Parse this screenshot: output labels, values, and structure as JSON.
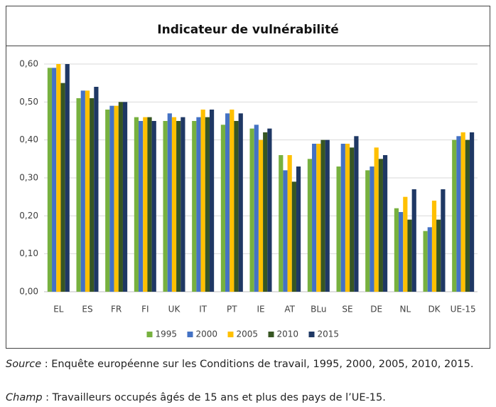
{
  "chart_data": {
    "type": "bar",
    "title": "Indicateur de vulnérabilité",
    "categories": [
      "EL",
      "ES",
      "FR",
      "FI",
      "UK",
      "IT",
      "PT",
      "IE",
      "AT",
      "BLu",
      "SE",
      "DE",
      "NL",
      "DK",
      "UE-15"
    ],
    "series": [
      {
        "name": "1995",
        "color": "#77b13f",
        "values": [
          0.59,
          0.51,
          0.48,
          0.46,
          0.45,
          0.45,
          0.44,
          0.43,
          0.36,
          0.35,
          0.33,
          0.32,
          0.22,
          0.16,
          0.4
        ]
      },
      {
        "name": "2000",
        "color": "#4472c4",
        "values": [
          0.59,
          0.53,
          0.49,
          0.45,
          0.47,
          0.46,
          0.47,
          0.44,
          0.32,
          0.39,
          0.39,
          0.33,
          0.21,
          0.17,
          0.41
        ]
      },
      {
        "name": "2005",
        "color": "#ffc000",
        "values": [
          0.6,
          0.53,
          0.49,
          0.46,
          0.46,
          0.48,
          0.48,
          0.4,
          0.36,
          0.39,
          0.39,
          0.38,
          0.25,
          0.24,
          0.42
        ]
      },
      {
        "name": "2010",
        "color": "#375623",
        "values": [
          0.55,
          0.51,
          0.5,
          0.46,
          0.45,
          0.46,
          0.45,
          0.42,
          0.29,
          0.4,
          0.38,
          0.35,
          0.19,
          0.19,
          0.4
        ]
      },
      {
        "name": "2015",
        "color": "#1f3864",
        "values": [
          0.6,
          0.54,
          0.5,
          0.45,
          0.46,
          0.48,
          0.47,
          0.43,
          0.33,
          0.4,
          0.41,
          0.36,
          0.27,
          0.27,
          0.42
        ]
      }
    ],
    "ylim": [
      0,
      0.6
    ],
    "yticks": [
      {
        "value": 0,
        "label": "0,00"
      },
      {
        "value": 0.1,
        "label": "0,10"
      },
      {
        "value": 0.2,
        "label": "0,20"
      },
      {
        "value": 0.3,
        "label": "0,30"
      },
      {
        "value": 0.4,
        "label": "0,40"
      },
      {
        "value": 0.5,
        "label": "0,50"
      },
      {
        "value": 0.6,
        "label": "0,60"
      }
    ],
    "grid": true,
    "legend": "bottom"
  },
  "notes": {
    "source_label": "Source",
    "source_text": " : Enquête européenne sur les Conditions de travail, 1995, 2000, 2005, 2010, 2015.",
    "champ_label": "Champ",
    "champ_text": " : Travailleurs occupés âgés de 15 ans et plus des pays de l’UE-15."
  }
}
